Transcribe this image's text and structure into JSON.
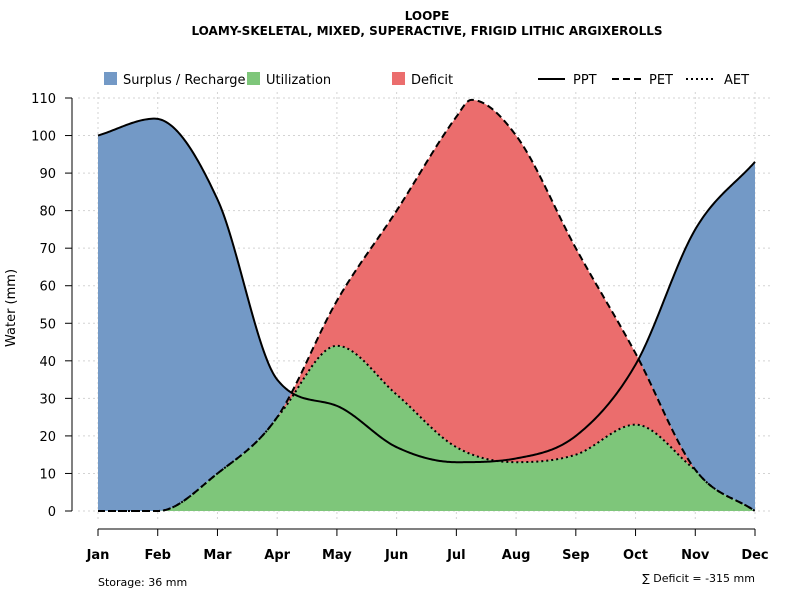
{
  "chart_data": {
    "type": "area",
    "title": "LOOPE",
    "subtitle": "LOAMY-SKELETAL, MIXED, SUPERACTIVE, FRIGID LITHIC ARGIXEROLLS",
    "xlabel": "",
    "ylabel": "Water (mm)",
    "ylim": [
      0,
      110
    ],
    "yticks": [
      "0",
      "10",
      "20",
      "30",
      "40",
      "50",
      "60",
      "70",
      "80",
      "90",
      "100",
      "110"
    ],
    "categories": [
      "Jan",
      "Feb",
      "Mar",
      "Apr",
      "May",
      "Jun",
      "Jul",
      "Aug",
      "Sep",
      "Oct",
      "Nov",
      "Dec"
    ],
    "grid": true,
    "legend_position": "top",
    "legend": {
      "areas": [
        {
          "label": "Surplus / Recharge",
          "color": "#7399c6"
        },
        {
          "label": "Utilization",
          "color": "#7ec67a"
        },
        {
          "label": "Deficit",
          "color": "#eb6d6d"
        }
      ],
      "lines": [
        {
          "label": "PPT",
          "style": "solid"
        },
        {
          "label": "PET",
          "style": "dashed"
        },
        {
          "label": "AET",
          "style": "dotted"
        }
      ]
    },
    "series": [
      {
        "name": "PPT",
        "x": [
          0,
          0.95,
          2,
          3,
          4,
          5,
          6,
          7,
          8,
          9,
          10,
          11
        ],
        "values": [
          100,
          104.5,
          83,
          35,
          28,
          17,
          13,
          14,
          20,
          39,
          75,
          93
        ]
      },
      {
        "name": "PET",
        "x": [
          0,
          1,
          2,
          3,
          4,
          5,
          6,
          6.25,
          7,
          8,
          9,
          10,
          11
        ],
        "values": [
          0,
          0,
          10,
          25,
          56,
          80,
          105,
          109.5,
          100,
          70,
          42,
          11,
          0
        ]
      },
      {
        "name": "AET",
        "x": [
          0,
          1,
          2,
          3,
          4,
          5,
          6,
          7,
          8,
          9,
          10,
          11
        ],
        "values": [
          0,
          0,
          10,
          25,
          44,
          31,
          17,
          13,
          15,
          23,
          11,
          0
        ]
      }
    ],
    "annotations": {
      "storage": "Storage: 36 mm",
      "deficit_sum": "∑ Deficit = -315 mm"
    },
    "colors": {
      "surplus": "#7399c6",
      "utilization": "#7ec67a",
      "deficit": "#eb6d6d",
      "line": "#000000"
    }
  }
}
